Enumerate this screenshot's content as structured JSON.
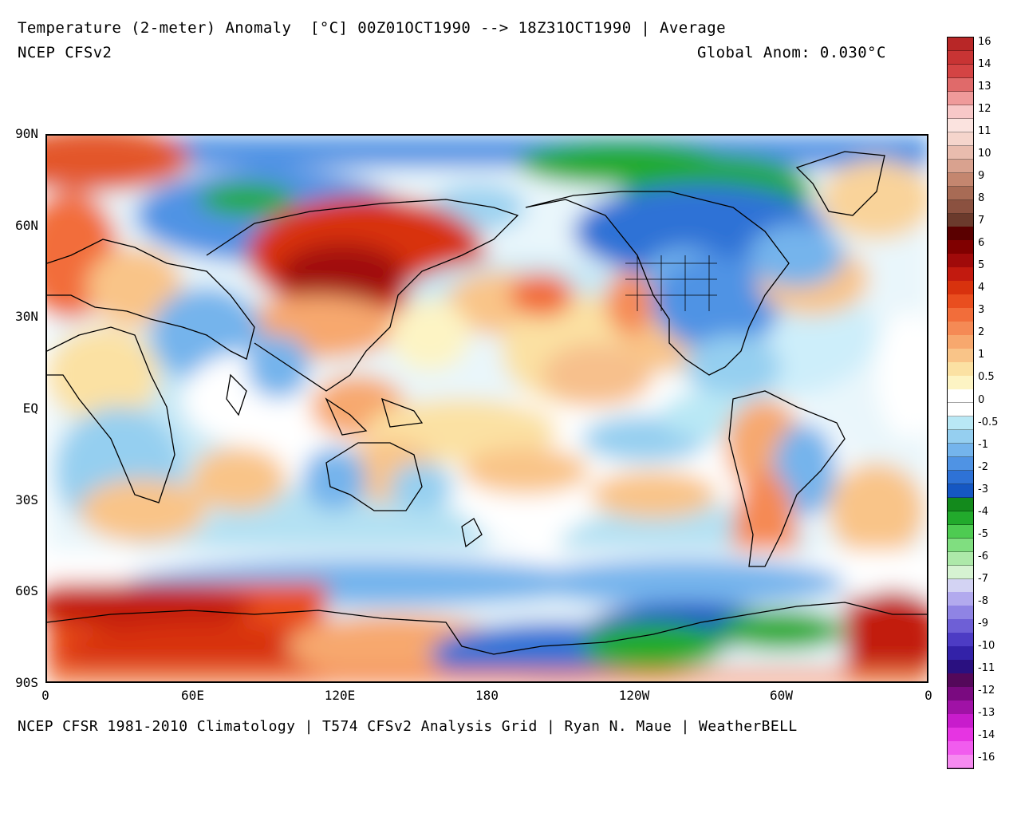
{
  "header": {
    "title": "Temperature (2-meter) Anomaly  [°C] 00Z01OCT1990 --> 18Z31OCT1990 | Average",
    "subtitle": "NCEP CFSv2",
    "global_anom": "Global Anom: 0.030°C"
  },
  "footer": "NCEP CFSR 1981-2010 Climatology | T574 CFSv2 Analysis Grid | Ryan N. Maue | WeatherBELL",
  "axes": {
    "y_labels": [
      {
        "text": "90N",
        "lat": 90
      },
      {
        "text": "60N",
        "lat": 60
      },
      {
        "text": "30N",
        "lat": 30
      },
      {
        "text": "EQ",
        "lat": 0
      },
      {
        "text": "30S",
        "lat": -30
      },
      {
        "text": "60S",
        "lat": -60
      },
      {
        "text": "90S",
        "lat": -90
      }
    ],
    "x_labels": [
      {
        "text": "0",
        "lon": 0
      },
      {
        "text": "60E",
        "lon": 60
      },
      {
        "text": "120E",
        "lon": 120
      },
      {
        "text": "180",
        "lon": 180
      },
      {
        "text": "120W",
        "lon": 240
      },
      {
        "text": "60W",
        "lon": 300
      },
      {
        "text": "0",
        "lon": 360
      }
    ]
  },
  "colorbar": {
    "labels": [
      "16",
      "14",
      "13",
      "12",
      "11",
      "10",
      "9",
      "8",
      "7",
      "6",
      "5",
      "4",
      "3",
      "2",
      "1",
      "0.5",
      "0",
      "-0.5",
      "-1",
      "-2",
      "-3",
      "-4",
      "-5",
      "-6",
      "-7",
      "-8",
      "-9",
      "-10",
      "-11",
      "-12",
      "-13",
      "-14",
      "-16"
    ],
    "colors": [
      "#b82727",
      "#c83434",
      "#d44444",
      "#e06a6a",
      "#ef9a9a",
      "#f8c8c8",
      "#fbe3df",
      "#f5d5cc",
      "#e9bcae",
      "#d9a28f",
      "#c4866f",
      "#a86b55",
      "#8b5140",
      "#6b3a2c",
      "#5a0000",
      "#800000",
      "#a00a0a",
      "#c21a0f",
      "#d8320e",
      "#e94e1f",
      "#f26d3a",
      "#f58a55",
      "#f7a86e",
      "#f9c488",
      "#fbe1a3",
      "#fdf4c4",
      "#ffffff",
      "#ffffff",
      "#b9e8f5",
      "#95cff0",
      "#74b4ec",
      "#4f93e4",
      "#2e72d6",
      "#1557c3",
      "#138a1c",
      "#22aa2c",
      "#4ecb52",
      "#80de80",
      "#ade9a9",
      "#d6f3d2",
      "#d3d3f3",
      "#b2aaee",
      "#8f84e4",
      "#6e5fd6",
      "#4d3cc4",
      "#3322a8",
      "#2a1080",
      "#54085a",
      "#7a0a80",
      "#a012a6",
      "#c81ccc",
      "#e634e2",
      "#f15cee",
      "#f68af0"
    ]
  }
}
